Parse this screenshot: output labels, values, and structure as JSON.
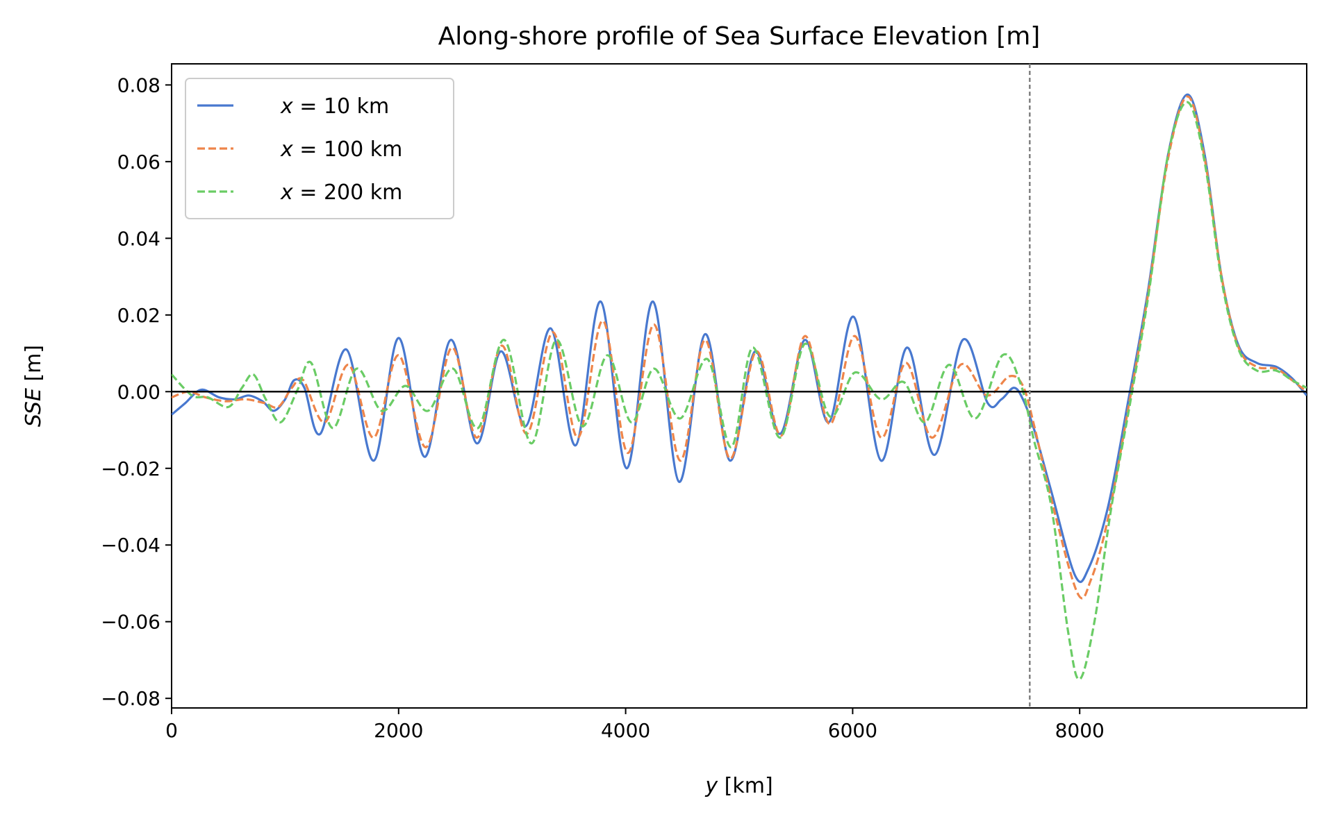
{
  "chart_data": {
    "type": "line",
    "title": "Along-shore profile of Sea Surface Elevation [m]",
    "xlabel": "y [km]",
    "ylabel": "SSE [m]",
    "xlim": [
      0,
      10000
    ],
    "ylim": [
      -0.0825,
      0.0855
    ],
    "xticks": [
      0,
      2000,
      4000,
      6000,
      8000
    ],
    "xtick_labels": [
      "0",
      "2000",
      "4000",
      "6000",
      "8000"
    ],
    "yticks": [
      -0.08,
      -0.06,
      -0.04,
      -0.02,
      0.0,
      0.02,
      0.04,
      0.06,
      0.08
    ],
    "ytick_labels": [
      "−0.08",
      "−0.06",
      "−0.04",
      "−0.02",
      "0.00",
      "0.02",
      "0.04",
      "0.06",
      "0.08"
    ],
    "grid": false,
    "legend_position": "top-left",
    "reference_lines": [
      {
        "orientation": "horizontal",
        "value": 0.0,
        "style": "solid",
        "color": "#000000"
      },
      {
        "orientation": "vertical",
        "value": 7560,
        "style": "dashed",
        "color": "#808080"
      }
    ],
    "series": [
      {
        "name": "x = 10 km",
        "legend_x_label": "x",
        "legend_value_label": " = 10 km",
        "color": "#4878cf",
        "style": "solid",
        "points": [
          [
            0,
            -0.006
          ],
          [
            120,
            -0.003
          ],
          [
            260,
            0.0005
          ],
          [
            420,
            -0.0015
          ],
          [
            560,
            -0.002
          ],
          [
            680,
            -0.001
          ],
          [
            800,
            -0.0025
          ],
          [
            900,
            -0.005
          ],
          [
            1000,
            -0.002
          ],
          [
            1080,
            0.003
          ],
          [
            1170,
            0.001
          ],
          [
            1310,
            -0.011
          ],
          [
            1540,
            0.011
          ],
          [
            1780,
            -0.018
          ],
          [
            2000,
            0.014
          ],
          [
            2230,
            -0.017
          ],
          [
            2460,
            0.0135
          ],
          [
            2690,
            -0.0135
          ],
          [
            2900,
            0.0105
          ],
          [
            3120,
            -0.009
          ],
          [
            3340,
            0.0165
          ],
          [
            3560,
            -0.014
          ],
          [
            3780,
            0.0235
          ],
          [
            4010,
            -0.02
          ],
          [
            4240,
            0.0235
          ],
          [
            4470,
            -0.0235
          ],
          [
            4700,
            0.015
          ],
          [
            4920,
            -0.018
          ],
          [
            5140,
            0.0105
          ],
          [
            5360,
            -0.011
          ],
          [
            5580,
            0.0135
          ],
          [
            5790,
            -0.008
          ],
          [
            6010,
            0.0195
          ],
          [
            6250,
            -0.018
          ],
          [
            6480,
            0.0115
          ],
          [
            6720,
            -0.0165
          ],
          [
            6970,
            0.0135
          ],
          [
            7190,
            -0.003
          ],
          [
            7310,
            -0.002
          ],
          [
            7420,
            0.001
          ],
          [
            7500,
            -0.002
          ],
          [
            7600,
            -0.01
          ],
          [
            7750,
            -0.026
          ],
          [
            7960,
            -0.048
          ],
          [
            8080,
            -0.046
          ],
          [
            8250,
            -0.03
          ],
          [
            8430,
            -0.002
          ],
          [
            8600,
            0.026
          ],
          [
            8780,
            0.062
          ],
          [
            8950,
            0.0775
          ],
          [
            9100,
            0.062
          ],
          [
            9250,
            0.03
          ],
          [
            9400,
            0.012
          ],
          [
            9560,
            0.0075
          ],
          [
            9730,
            0.0065
          ],
          [
            9870,
            0.0035
          ],
          [
            10000,
            -0.001
          ]
        ]
      },
      {
        "name": "x = 100 km",
        "legend_x_label": "x",
        "legend_value_label": " = 100 km",
        "color": "#ee854a",
        "style": "dashed",
        "points": [
          [
            0,
            -0.0015
          ],
          [
            150,
            0.0
          ],
          [
            300,
            -0.0015
          ],
          [
            480,
            -0.0025
          ],
          [
            650,
            -0.002
          ],
          [
            820,
            -0.003
          ],
          [
            940,
            -0.004
          ],
          [
            1060,
            0.001
          ],
          [
            1160,
            0.003
          ],
          [
            1350,
            -0.008
          ],
          [
            1560,
            0.007
          ],
          [
            1780,
            -0.012
          ],
          [
            2000,
            0.0095
          ],
          [
            2240,
            -0.0145
          ],
          [
            2470,
            0.0115
          ],
          [
            2690,
            -0.012
          ],
          [
            2910,
            0.012
          ],
          [
            3130,
            -0.011
          ],
          [
            3360,
            0.0155
          ],
          [
            3580,
            -0.012
          ],
          [
            3800,
            0.0185
          ],
          [
            4020,
            -0.016
          ],
          [
            4250,
            0.0175
          ],
          [
            4480,
            -0.018
          ],
          [
            4700,
            0.0135
          ],
          [
            4920,
            -0.0175
          ],
          [
            5150,
            0.0105
          ],
          [
            5370,
            -0.0115
          ],
          [
            5580,
            0.0145
          ],
          [
            5800,
            -0.0085
          ],
          [
            6020,
            0.0145
          ],
          [
            6250,
            -0.012
          ],
          [
            6470,
            0.0075
          ],
          [
            6700,
            -0.012
          ],
          [
            6950,
            0.007
          ],
          [
            7180,
            -0.001
          ],
          [
            7380,
            0.004
          ],
          [
            7500,
            0.0015
          ],
          [
            7600,
            -0.009
          ],
          [
            7750,
            -0.028
          ],
          [
            7980,
            -0.0525
          ],
          [
            8100,
            -0.049
          ],
          [
            8250,
            -0.033
          ],
          [
            8430,
            -0.004
          ],
          [
            8600,
            0.025
          ],
          [
            8780,
            0.061
          ],
          [
            8950,
            0.077
          ],
          [
            9100,
            0.061
          ],
          [
            9250,
            0.03
          ],
          [
            9400,
            0.0115
          ],
          [
            9560,
            0.0065
          ],
          [
            9730,
            0.006
          ],
          [
            9870,
            0.003
          ],
          [
            10000,
            0.0
          ]
        ]
      },
      {
        "name": "x = 200 km",
        "legend_x_label": "x",
        "legend_value_label": " = 200 km",
        "color": "#6acc65",
        "style": "dashed",
        "points": [
          [
            0,
            0.0045
          ],
          [
            180,
            -0.001
          ],
          [
            320,
            -0.0015
          ],
          [
            500,
            -0.004
          ],
          [
            620,
            0.001
          ],
          [
            720,
            0.0045
          ],
          [
            830,
            -0.002
          ],
          [
            960,
            -0.008
          ],
          [
            1110,
            0.0005
          ],
          [
            1230,
            0.0075
          ],
          [
            1420,
            -0.0095
          ],
          [
            1630,
            0.006
          ],
          [
            1850,
            -0.005
          ],
          [
            2060,
            0.0015
          ],
          [
            2260,
            -0.005
          ],
          [
            2480,
            0.006
          ],
          [
            2700,
            -0.0095
          ],
          [
            2930,
            0.0135
          ],
          [
            3170,
            -0.0135
          ],
          [
            3390,
            0.0135
          ],
          [
            3620,
            -0.009
          ],
          [
            3840,
            0.0095
          ],
          [
            4050,
            -0.008
          ],
          [
            4250,
            0.006
          ],
          [
            4480,
            -0.007
          ],
          [
            4720,
            0.0085
          ],
          [
            4930,
            -0.0145
          ],
          [
            5120,
            0.0115
          ],
          [
            5360,
            -0.012
          ],
          [
            5580,
            0.0125
          ],
          [
            5800,
            -0.0065
          ],
          [
            6020,
            0.005
          ],
          [
            6250,
            -0.002
          ],
          [
            6450,
            0.0025
          ],
          [
            6640,
            -0.008
          ],
          [
            6850,
            0.007
          ],
          [
            7080,
            -0.007
          ],
          [
            7320,
            0.0095
          ],
          [
            7480,
            0.002
          ],
          [
            7600,
            -0.013
          ],
          [
            7750,
            -0.03
          ],
          [
            7900,
            -0.063
          ],
          [
            8000,
            -0.075
          ],
          [
            8130,
            -0.06
          ],
          [
            8280,
            -0.03
          ],
          [
            8450,
            -0.002
          ],
          [
            8610,
            0.026
          ],
          [
            8780,
            0.062
          ],
          [
            8950,
            0.0755
          ],
          [
            9100,
            0.06
          ],
          [
            9250,
            0.029
          ],
          [
            9400,
            0.011
          ],
          [
            9560,
            0.0055
          ],
          [
            9730,
            0.0055
          ],
          [
            9870,
            0.003
          ],
          [
            10000,
            0.001
          ]
        ]
      }
    ]
  }
}
